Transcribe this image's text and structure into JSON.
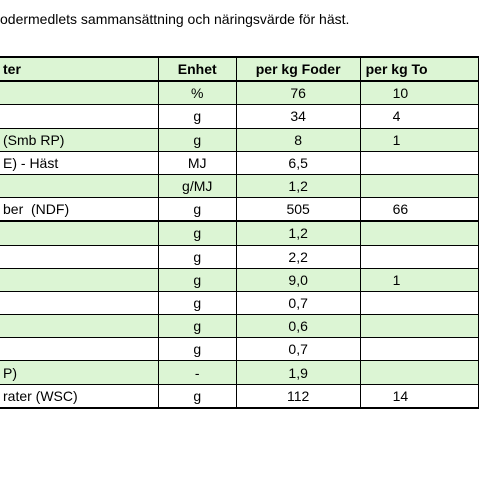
{
  "title": "odermedlets sammansättning och näringsvärde för häst.",
  "table": {
    "header": [
      "ter",
      "Enhet",
      "per kg Foder",
      "per kg To"
    ],
    "rows": [
      [
        null,
        "%",
        "76",
        "10"
      ],
      [
        null,
        "g",
        "34",
        "4"
      ],
      [
        "(Smb RP)",
        "g",
        "8",
        "1"
      ],
      [
        "E) - Häst",
        "MJ",
        "6,5",
        null
      ],
      [
        null,
        "g/MJ",
        "1,2",
        null
      ],
      [
        "ber  (NDF)",
        "g",
        "505",
        "66"
      ],
      [
        null,
        "g",
        "1,2",
        null
      ],
      [
        null,
        "g",
        "2,2",
        null
      ],
      [
        null,
        "g",
        "9,0",
        "1"
      ],
      [
        null,
        "g",
        "0,7",
        null
      ],
      [
        null,
        "g",
        "0,6",
        null
      ],
      [
        null,
        "g",
        "0,7",
        null
      ],
      [
        "P)",
        "-",
        "1,9",
        null
      ],
      [
        "rater (WSC)",
        "g",
        "112",
        "14"
      ]
    ]
  }
}
